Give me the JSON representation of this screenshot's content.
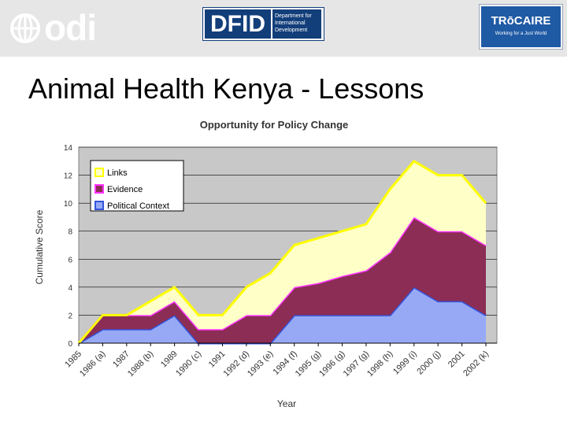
{
  "header": {
    "odi_logo_text": "odi",
    "dfid_logo_main": "DFID",
    "dfid_logo_sub": "Department for International Development",
    "trocaire_logo_main": "TRōCAIRE",
    "trocaire_logo_sub": "Working for a Just World"
  },
  "slide": {
    "title": "Animal Health Kenya - Lessons"
  },
  "colors": {
    "links": "#ffffc8",
    "evidence": "#8b2d55",
    "political_context": "#97a9f5",
    "plot_background": "#c8c8c8",
    "links_edge": "#ffff00",
    "evidence_edge": "#ff33ff",
    "political_edge": "#3355dd"
  },
  "chart_data": {
    "type": "area",
    "stacked": true,
    "title": "Opportunity for Policy Change",
    "xlabel": "Year",
    "ylabel": "Cumulative Score",
    "ylim": [
      0,
      14
    ],
    "yticks": [
      "0",
      "2",
      "4",
      "6",
      "8",
      "10",
      "12",
      "14"
    ],
    "grid": true,
    "legend_position": "top-left",
    "categories": [
      "1985",
      "1986 (a)",
      "1987",
      "1988 (b)",
      "1989",
      "1990 (c)",
      "1991",
      "1992 (d)",
      "1993 (e)",
      "1994 (f)",
      "1995 (g)",
      "1996 (g)",
      "1997 (g)",
      "1998 (h)",
      "1999 (i)",
      "2000 (j)",
      "2001",
      "2002 (k)"
    ],
    "series": [
      {
        "name": "Political Context",
        "values": [
          0,
          1,
          1,
          1,
          2,
          0,
          0,
          0,
          0,
          2,
          2,
          2,
          2,
          2,
          4,
          3,
          3,
          2
        ]
      },
      {
        "name": "Evidence",
        "values": [
          0,
          1,
          1,
          1,
          1,
          1,
          1,
          2,
          2,
          2,
          2.3,
          2.8,
          3.2,
          4.5,
          5,
          5,
          5,
          5
        ]
      },
      {
        "name": "Links",
        "values": [
          0,
          0,
          0,
          1,
          1,
          1,
          1,
          2,
          3,
          3,
          3.2,
          3.2,
          3.3,
          4.5,
          4,
          4,
          4,
          3
        ]
      }
    ],
    "legend_order": [
      "Links",
      "Evidence",
      "Political Context"
    ]
  }
}
